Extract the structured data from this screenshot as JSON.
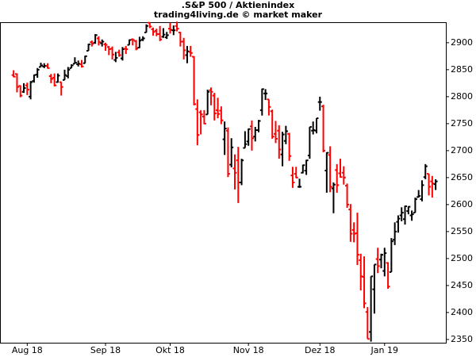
{
  "chart_data": {
    "type": "ohlc",
    "title": ".S&P 500 / Aktienindex",
    "subtitle": "trading4living.de © market maker",
    "up_color": "#000000",
    "down_color": "#ff0000",
    "categories": [
      null,
      null,
      null,
      null,
      "Aug 18",
      null,
      null,
      null,
      null,
      null,
      null,
      null,
      null,
      null,
      null,
      null,
      null,
      null,
      null,
      null,
      null,
      null,
      null,
      null,
      null,
      null,
      null,
      "Sep 18",
      null,
      null,
      null,
      null,
      null,
      null,
      null,
      null,
      null,
      null,
      null,
      null,
      null,
      null,
      null,
      null,
      null,
      null,
      "Okt 18",
      null,
      null,
      null,
      null,
      null,
      null,
      null,
      null,
      null,
      null,
      null,
      null,
      null,
      null,
      null,
      null,
      null,
      null,
      null,
      null,
      null,
      null,
      "Nov 18",
      null,
      null,
      null,
      null,
      null,
      null,
      null,
      null,
      null,
      null,
      null,
      null,
      null,
      null,
      null,
      null,
      null,
      null,
      null,
      null,
      "Dez 18",
      null,
      null,
      null,
      null,
      null,
      null,
      null,
      null,
      null,
      null,
      null,
      null,
      null,
      null,
      null,
      null,
      null,
      null,
      "Jan 19",
      null,
      null,
      null,
      null,
      null,
      null,
      null,
      null,
      null,
      null,
      null,
      null,
      null,
      null,
      null
    ],
    "open": [
      2840,
      2842,
      2820,
      2809,
      2821,
      2800,
      2829,
      2841,
      2855,
      2856,
      2857,
      2838,
      2835,
      2827,
      2827,
      2831,
      2838,
      2853,
      2861,
      2860,
      2860,
      2862,
      2885,
      2901,
      2900,
      2908,
      2899,
      2897,
      2892,
      2889,
      2868,
      2882,
      2871,
      2889,
      2896,
      2906,
      2903,
      2891,
      2906,
      2919,
      2937,
      2925,
      2922,
      2916,
      2911,
      2910,
      2926,
      2923,
      2931,
      2919,
      2902,
      2877,
      2883,
      2874,
      2777,
      2771,
      2763,
      2767,
      2812,
      2802,
      2775,
      2774,
      2721,
      2737,
      2674,
      2667,
      2682,
      2641,
      2705,
      2717,
      2745,
      2726,
      2738,
      2775,
      2806,
      2795,
      2773,
      2731,
      2737,
      2693,
      2718,
      2731,
      2654,
      2657,
      2633,
      2659,
      2663,
      2691,
      2737,
      2737,
      2790,
      2782,
      2663,
      2692,
      2630,
      2664,
      2658,
      2659,
      2635,
      2591,
      2553,
      2547,
      2497,
      2466,
      2401,
      2364,
      2443,
      2499,
      2498,
      2477,
      2492,
      2475,
      2535,
      2568,
      2580,
      2573,
      2588,
      2580,
      2585,
      2614,
      2610,
      2651,
      2657,
      2643,
      2638
    ],
    "high": [
      2849,
      2843,
      2821,
      2825,
      2826,
      2829,
      2841,
      2853,
      2863,
      2862,
      2862,
      2842,
      2843,
      2843,
      2827,
      2850,
      2855,
      2860,
      2873,
      2867,
      2868,
      2876,
      2898,
      2904,
      2916,
      2912,
      2906,
      2900,
      2894,
      2893,
      2883,
      2887,
      2892,
      2894,
      2906,
      2908,
      2905,
      2911,
      2912,
      2934,
      2937,
      2928,
      2926,
      2931,
      2927,
      2920,
      2937,
      2932,
      2939,
      2920,
      2909,
      2894,
      2894,
      2875,
      2795,
      2775,
      2775,
      2813,
      2817,
      2807,
      2798,
      2782,
      2754,
      2743,
      2723,
      2693,
      2707,
      2685,
      2736,
      2741,
      2756,
      2744,
      2757,
      2815,
      2814,
      2795,
      2776,
      2755,
      2747,
      2735,
      2746,
      2733,
      2670,
      2670,
      2648,
      2674,
      2683,
      2744,
      2754,
      2760,
      2800,
      2785,
      2697,
      2708,
      2641,
      2675,
      2685,
      2671,
      2639,
      2601,
      2567,
      2585,
      2509,
      2504,
      2410,
      2467,
      2489,
      2520,
      2509,
      2520,
      2493,
      2538,
      2567,
      2580,
      2595,
      2598,
      2597,
      2589,
      2613,
      2627,
      2645,
      2675,
      2657,
      2653,
      2647
    ],
    "low": [
      2836,
      2808,
      2799,
      2807,
      2803,
      2795,
      2826,
      2835,
      2855,
      2853,
      2852,
      2825,
      2819,
      2826,
      2802,
      2831,
      2834,
      2853,
      2861,
      2856,
      2854,
      2862,
      2885,
      2893,
      2898,
      2895,
      2893,
      2885,
      2877,
      2869,
      2864,
      2874,
      2867,
      2879,
      2896,
      2895,
      2886,
      2890,
      2903,
      2919,
      2927,
      2913,
      2912,
      2903,
      2909,
      2907,
      2917,
      2914,
      2921,
      2893,
      2869,
      2862,
      2874,
      2784,
      2710,
      2730,
      2749,
      2767,
      2784,
      2756,
      2760,
      2749,
      2692,
      2651,
      2669,
      2628,
      2603,
      2636,
      2705,
      2709,
      2700,
      2717,
      2734,
      2765,
      2794,
      2765,
      2722,
      2714,
      2685,
      2671,
      2712,
      2681,
      2631,
      2649,
      2631,
      2658,
      2655,
      2685,
      2730,
      2732,
      2774,
      2697,
      2622,
      2623,
      2584,
      2622,
      2650,
      2637,
      2594,
      2531,
      2530,
      2488,
      2441,
      2408,
      2351,
      2346,
      2398,
      2473,
      2482,
      2467,
      2444,
      2475,
      2525,
      2548,
      2569,
      2563,
      2582,
      2570,
      2585,
      2613,
      2606,
      2647,
      2617,
      2613,
      2627
    ],
    "close": [
      2837,
      2818,
      2802,
      2816,
      2813,
      2827,
      2840,
      2850,
      2858,
      2857,
      2853,
      2833,
      2821,
      2839,
      2818,
      2840,
      2850,
      2858,
      2863,
      2861,
      2856,
      2875,
      2897,
      2898,
      2914,
      2901,
      2902,
      2896,
      2888,
      2878,
      2872,
      2877,
      2888,
      2888,
      2905,
      2905,
      2889,
      2904,
      2908,
      2931,
      2930,
      2920,
      2916,
      2906,
      2915,
      2914,
      2924,
      2923,
      2926,
      2902,
      2886,
      2884,
      2881,
      2786,
      2729,
      2767,
      2750,
      2809,
      2809,
      2769,
      2768,
      2756,
      2741,
      2657,
      2706,
      2659,
      2641,
      2682,
      2712,
      2740,
      2723,
      2738,
      2755,
      2814,
      2806,
      2781,
      2726,
      2722,
      2702,
      2730,
      2736,
      2690,
      2641,
      2650,
      2633,
      2673,
      2682,
      2744,
      2738,
      2760,
      2790,
      2700,
      2696,
      2633,
      2637,
      2636,
      2651,
      2650,
      2600,
      2546,
      2546,
      2507,
      2467,
      2417,
      2351,
      2467,
      2489,
      2486,
      2507,
      2510,
      2448,
      2532,
      2550,
      2574,
      2585,
      2597,
      2596,
      2582,
      2610,
      2616,
      2636,
      2671,
      2633,
      2639,
      2643
    ],
    "ylim": [
      2344,
      2938
    ],
    "yticks": [
      2350,
      2400,
      2450,
      2500,
      2550,
      2600,
      2650,
      2700,
      2750,
      2800,
      2850,
      2900
    ]
  }
}
